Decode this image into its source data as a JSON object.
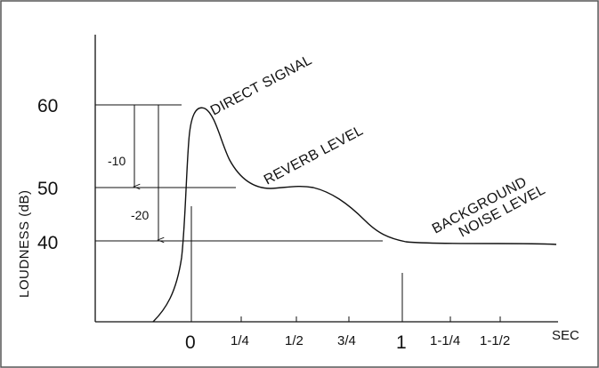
{
  "yaxis": {
    "label": "LOUDNESS (dB)",
    "ticks": [
      "60",
      "50",
      "40"
    ]
  },
  "xaxis": {
    "unit": "SEC",
    "ticks": [
      "0",
      "1/4",
      "1/2",
      "3/4",
      "1",
      "1-1/4",
      "1-1/2"
    ]
  },
  "annotations": {
    "direct": "DIRECT SIGNAL",
    "reverb": "REVERB LEVEL",
    "bg1": "BACKGROUND",
    "bg2": "NOISE LEVEL"
  },
  "drops": {
    "minus10": "-10",
    "minus20": "-20"
  },
  "colors": {
    "ink": "#111111",
    "frame": "#555555"
  }
}
